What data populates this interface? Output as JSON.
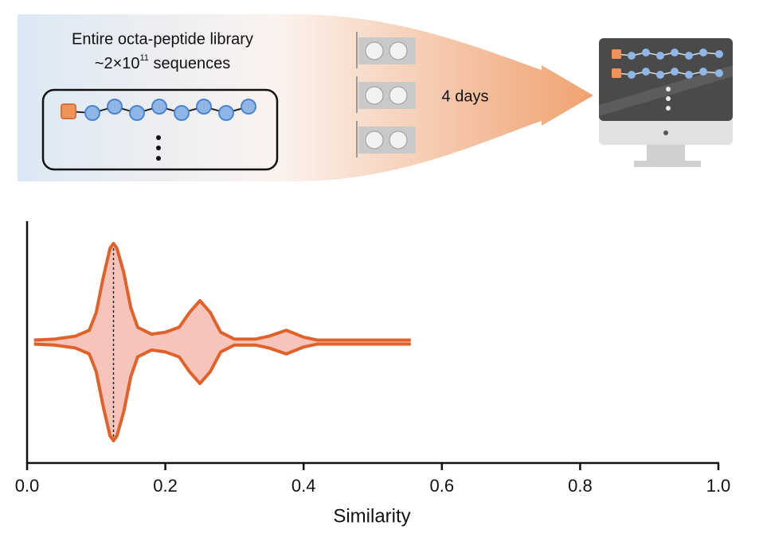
{
  "diagram": {
    "library_line1": "Entire octa-peptide library",
    "library_prefix": "~2×10",
    "library_exponent": "11",
    "library_suffix": " sequences",
    "duration": "4 days"
  },
  "chart_data": {
    "type": "violin",
    "xlabel": "Similarity",
    "x": [
      0.01,
      0.04,
      0.07,
      0.09,
      0.1,
      0.11,
      0.12,
      0.125,
      0.13,
      0.14,
      0.15,
      0.16,
      0.18,
      0.2,
      0.22,
      0.235,
      0.25,
      0.265,
      0.28,
      0.3,
      0.33,
      0.35,
      0.375,
      0.4,
      0.42,
      0.555
    ],
    "values": [
      0.02,
      0.03,
      0.06,
      0.12,
      0.3,
      0.65,
      0.95,
      1.0,
      0.95,
      0.7,
      0.35,
      0.15,
      0.08,
      0.1,
      0.15,
      0.3,
      0.42,
      0.3,
      0.1,
      0.03,
      0.03,
      0.06,
      0.12,
      0.05,
      0.02,
      0.02
    ],
    "median": 0.125,
    "color": "#e0622a",
    "fill": "#f7c4bc",
    "xlim": [
      0,
      1
    ],
    "xticks": [
      {
        "value": 0,
        "label": "0.0"
      },
      0.2,
      0.4,
      0.6,
      0.8,
      {
        "value": 1,
        "label": "1.0"
      }
    ]
  }
}
